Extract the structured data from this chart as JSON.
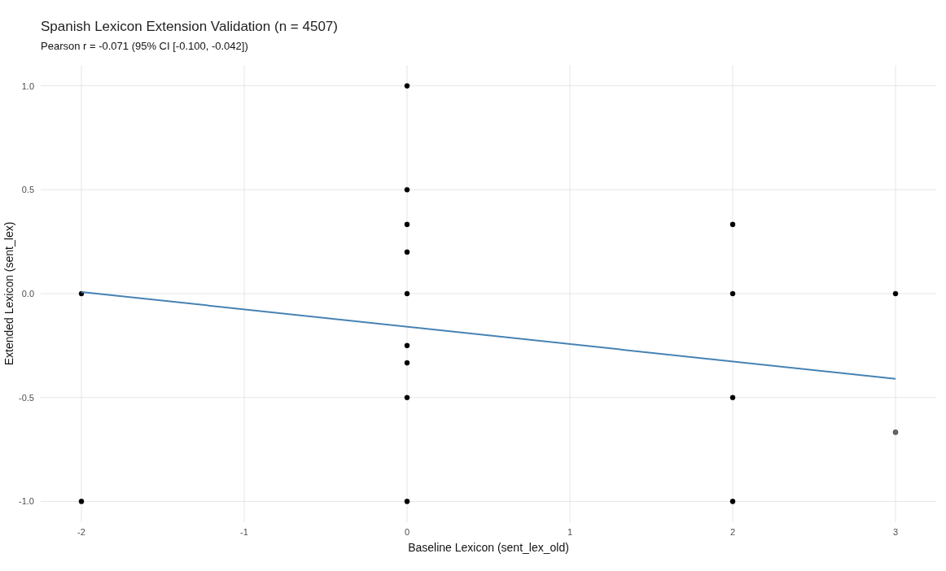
{
  "chart_data": {
    "type": "scatter",
    "title": "Spanish Lexicon Extension Validation (n = 4507)",
    "subtitle": "Pearson r = -0.071 (95% CI [-0.100, -0.042])",
    "xlabel": "Baseline Lexicon (sent_lex_old)",
    "ylabel": "Extended Lexicon (sent_lex)",
    "xlim": [
      -2.25,
      3.25
    ],
    "xticks": [
      -2,
      -1,
      0,
      1,
      2,
      3
    ],
    "ylim": [
      -1.1,
      1.1
    ],
    "yticks": [
      {
        "value": -1,
        "label": "-1.0"
      },
      {
        "value": -0.5,
        "label": "-0.5"
      },
      {
        "value": 0,
        "label": "0.0"
      },
      {
        "value": 0.5,
        "label": "0.5"
      },
      {
        "value": 1,
        "label": "1.0"
      }
    ],
    "grid": true,
    "marker": "circle",
    "series": [
      {
        "color": "#000000",
        "x": [
          -2,
          -2,
          0,
          0,
          0,
          0,
          0,
          0,
          0,
          0,
          0,
          2,
          2,
          2,
          2,
          3,
          3
        ],
        "values": [
          0,
          -1,
          1,
          0.5,
          0.333,
          0.2,
          0,
          -0.25,
          -0.333,
          -0.5,
          -1,
          0.333,
          0,
          -0.5,
          -1,
          0,
          -0.667
        ],
        "colors": [
          "#000000",
          "#000000",
          "#000000",
          "#000000",
          "#000000",
          "#000000",
          "#000000",
          "#000000",
          "#000000",
          "#000000",
          "#000000",
          "#000000",
          "#000000",
          "#000000",
          "#000000",
          "#000000",
          "#666666"
        ]
      },
      {
        "type": "line",
        "color": "#4682b4",
        "x": [
          -2,
          3
        ],
        "values": [
          0.008,
          -0.41
        ],
        "marker": "none"
      }
    ]
  }
}
